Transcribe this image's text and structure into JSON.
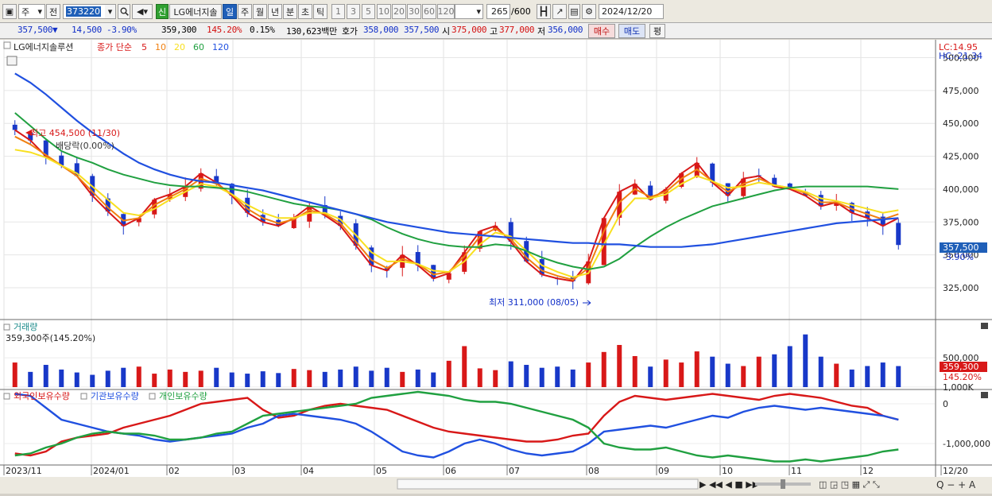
{
  "toolbar": {
    "period_label": "주",
    "prev_label": "전",
    "code": "373220",
    "company_label": "LG에너지솔",
    "badge_sin": "신",
    "periods": [
      "일",
      "주",
      "월",
      "년",
      "분",
      "초",
      "틱"
    ],
    "intervals": [
      "1",
      "3",
      "5",
      "10",
      "20",
      "30",
      "60",
      "120"
    ],
    "range_value": "265",
    "range_total": "/600",
    "date": "2024/12/20"
  },
  "quote": {
    "price": "357,500",
    "change_arrow": "▼",
    "change": "14,500",
    "change_pct": "-3.90%",
    "volume": "359,300",
    "volume_pct": "145.20%",
    "turnover_pct": "0.15%",
    "amount": "130,623백만",
    "hoga_label": "호가",
    "hoga_ask": "358,000",
    "hoga_bid": "357,500",
    "open_label": "시",
    "open": "375,000",
    "high_label": "고",
    "high": "377,000",
    "low_label": "저",
    "low": "356,000",
    "buy_label": "매수",
    "sell_label": "매도",
    "flat_label": "평"
  },
  "price_panel": {
    "stock_name": "LG에너지솔루션",
    "ma_prefix": "종가 단순",
    "ma_periods": [
      "5",
      "10",
      "20",
      "60",
      "120"
    ],
    "ma_colors": [
      "#d81818",
      "#f08010",
      "#f8e020",
      "#20a040",
      "#2050e0"
    ],
    "lc": "LC:14.95",
    "hc": "HC:-21.34",
    "y_ticks": [
      "500,000",
      "475,000",
      "450,000",
      "425,000",
      "400,000",
      "375,000",
      "350,000",
      "325,000"
    ],
    "current_tag": "357,500",
    "current_pct": "-3.90%",
    "high_note": "최고 454,500 (11/30)",
    "dividend_note": "배당락(0.00%)",
    "low_note": "최저 311,000 (08/05)"
  },
  "volume_panel": {
    "title": "거래량",
    "info": "359,300주(145.20%)",
    "y_ticks": [
      "1,000K",
      "500,000"
    ],
    "tag": "359,300",
    "tag_pct": "145.20%"
  },
  "holdings_panel": {
    "labels": [
      "외국인보유수량",
      "기관보유수량",
      "개인보유수량"
    ],
    "colors": [
      "#d81818",
      "#2050e0",
      "#20a040"
    ],
    "y_ticks": [
      "0",
      "-1,000,000"
    ]
  },
  "x_axis": [
    "2023/11",
    "2024/01",
    "02",
    "03",
    "04",
    "05",
    "06",
    "07",
    "08",
    "09",
    "10",
    "11",
    "12",
    "12/20"
  ],
  "chart_data": [
    {
      "type": "candlestick",
      "title": "LG에너지솔루션",
      "x": [
        "2023/11",
        "2024/01",
        "02",
        "03",
        "04",
        "05",
        "06",
        "07",
        "08",
        "09",
        "10",
        "11",
        "12",
        "12/20"
      ],
      "ylim": [
        302000,
        510000
      ],
      "close_series": [
        445000,
        437000,
        425000,
        418000,
        410000,
        395000,
        383000,
        372000,
        378000,
        392000,
        396000,
        402000,
        412000,
        405000,
        395000,
        382000,
        375000,
        372000,
        378000,
        387000,
        380000,
        372000,
        357000,
        342000,
        338000,
        350000,
        342000,
        332000,
        336000,
        352000,
        368000,
        372000,
        360000,
        345000,
        335000,
        332000,
        330000,
        345000,
        378000,
        398000,
        404000,
        392000,
        400000,
        412000,
        420000,
        405000,
        395000,
        408000,
        410000,
        402000,
        400000,
        395000,
        387000,
        390000,
        382000,
        378000,
        372000,
        357500
      ],
      "ma_series": [
        {
          "name": "5",
          "values": [
            445000,
            437000,
            425000,
            418000,
            410000,
            395000,
            383000,
            372000,
            378000,
            392000,
            396000,
            402000,
            412000,
            405000,
            395000,
            382000,
            375000,
            372000,
            378000,
            387000,
            380000,
            372000,
            357000,
            342000,
            338000,
            350000,
            342000,
            332000,
            336000,
            352000,
            368000,
            372000,
            360000,
            345000,
            335000,
            332000,
            330000,
            345000,
            378000,
            398000,
            404000,
            392000,
            400000,
            412000,
            420000,
            405000,
            395000,
            408000,
            410000,
            402000,
            400000,
            395000,
            387000,
            390000,
            382000,
            378000,
            372000,
            378000
          ]
        },
        {
          "name": "10",
          "values": [
            440000,
            434000,
            426000,
            418000,
            410000,
            398000,
            386000,
            376000,
            378000,
            388000,
            394000,
            400000,
            408000,
            404000,
            396000,
            385000,
            378000,
            374000,
            377000,
            384000,
            381000,
            374000,
            360000,
            346000,
            340000,
            347000,
            343000,
            335000,
            337000,
            349000,
            364000,
            370000,
            362000,
            348000,
            338000,
            334000,
            331000,
            340000,
            368000,
            390000,
            400000,
            394000,
            398000,
            408000,
            415000,
            406000,
            398000,
            404000,
            408000,
            403000,
            401000,
            397000,
            390000,
            390000,
            385000,
            381000,
            377000,
            381000
          ]
        },
        {
          "name": "20",
          "values": [
            430000,
            428000,
            424000,
            418000,
            412000,
            402000,
            392000,
            382000,
            380000,
            385000,
            392000,
            398000,
            404000,
            402000,
            396000,
            388000,
            382000,
            378000,
            378000,
            382000,
            382000,
            377000,
            365000,
            352000,
            345000,
            345000,
            343000,
            338000,
            337000,
            345000,
            358000,
            367000,
            364000,
            353000,
            342000,
            337000,
            333000,
            336000,
            358000,
            380000,
            393000,
            393000,
            396000,
            404000,
            410000,
            406000,
            401000,
            402000,
            405000,
            403000,
            401000,
            398000,
            393000,
            391000,
            388000,
            385000,
            382000,
            384000
          ]
        },
        {
          "name": "60",
          "values": [
            458000,
            448000,
            438000,
            429000,
            424000,
            420000,
            415000,
            411000,
            408000,
            405000,
            403000,
            402000,
            402000,
            401000,
            400000,
            398000,
            395000,
            392000,
            389000,
            387000,
            386000,
            384000,
            381000,
            377000,
            371000,
            366000,
            362000,
            359000,
            357000,
            356000,
            356000,
            358000,
            357000,
            353000,
            348000,
            344000,
            341000,
            339000,
            341000,
            347000,
            356000,
            364000,
            371000,
            377000,
            382000,
            387000,
            390000,
            393000,
            396000,
            399000,
            401000,
            402000,
            402000,
            402000,
            402000,
            402000,
            401000,
            400000
          ]
        },
        {
          "name": "120",
          "values": [
            488000,
            481000,
            472000,
            462000,
            452000,
            443000,
            435000,
            427000,
            420000,
            415000,
            411000,
            408000,
            406000,
            405000,
            403000,
            401000,
            399000,
            396000,
            393000,
            390000,
            387000,
            384000,
            381000,
            378000,
            375000,
            373000,
            371000,
            369000,
            367000,
            366000,
            365000,
            364000,
            363000,
            362000,
            361000,
            360000,
            359000,
            359000,
            358000,
            358000,
            357000,
            356000,
            356000,
            356000,
            357000,
            358000,
            360000,
            362000,
            364000,
            366000,
            368000,
            370000,
            372000,
            374000,
            375000,
            376000,
            377000,
            378000
          ]
        }
      ]
    },
    {
      "type": "bar",
      "title": "거래량",
      "ylim": [
        0,
        1100000
      ],
      "values": [
        420000,
        260000,
        380000,
        300000,
        250000,
        210000,
        280000,
        330000,
        350000,
        230000,
        300000,
        260000,
        280000,
        330000,
        250000,
        230000,
        270000,
        240000,
        310000,
        290000,
        260000,
        300000,
        350000,
        280000,
        330000,
        260000,
        300000,
        250000,
        450000,
        700000,
        320000,
        290000,
        440000,
        380000,
        330000,
        350000,
        300000,
        420000,
        600000,
        720000,
        530000,
        350000,
        470000,
        420000,
        610000,
        520000,
        400000,
        360000,
        520000,
        560000,
        700000,
        900000,
        520000,
        400000,
        300000,
        360000,
        420000,
        359300
      ]
    },
    {
      "type": "line",
      "title": "외국인/기관/개인 보유수량",
      "ylim": [
        -1500000,
        300000
      ],
      "series": [
        {
          "name": "외국인보유수량",
          "values": [
            -1250000,
            -1300000,
            -1200000,
            -950000,
            -850000,
            -800000,
            -750000,
            -600000,
            -500000,
            -400000,
            -300000,
            -150000,
            0,
            50000,
            100000,
            150000,
            -150000,
            -350000,
            -300000,
            -150000,
            -50000,
            0,
            -50000,
            -100000,
            -150000,
            -300000,
            -450000,
            -600000,
            -700000,
            -750000,
            -800000,
            -850000,
            -900000,
            -950000,
            -950000,
            -900000,
            -800000,
            -750000,
            -300000,
            50000,
            200000,
            150000,
            100000,
            150000,
            200000,
            250000,
            200000,
            150000,
            100000,
            200000,
            250000,
            200000,
            150000,
            50000,
            -50000,
            -100000,
            -300000,
            -400000
          ]
        },
        {
          "name": "기관보유수량",
          "values": [
            250000,
            200000,
            -100000,
            -400000,
            -500000,
            -600000,
            -700000,
            -750000,
            -800000,
            -900000,
            -950000,
            -900000,
            -850000,
            -800000,
            -750000,
            -600000,
            -500000,
            -300000,
            -250000,
            -300000,
            -350000,
            -400000,
            -500000,
            -700000,
            -950000,
            -1200000,
            -1300000,
            -1350000,
            -1200000,
            -1000000,
            -900000,
            -1000000,
            -1150000,
            -1250000,
            -1300000,
            -1250000,
            -1200000,
            -1000000,
            -700000,
            -650000,
            -600000,
            -550000,
            -600000,
            -500000,
            -400000,
            -300000,
            -350000,
            -200000,
            -100000,
            -50000,
            -100000,
            -150000,
            -100000,
            -150000,
            -200000,
            -250000,
            -300000,
            -400000
          ]
        },
        {
          "name": "개인보유수량",
          "values": [
            -1300000,
            -1250000,
            -1100000,
            -1000000,
            -850000,
            -750000,
            -700000,
            -750000,
            -750000,
            -800000,
            -900000,
            -900000,
            -850000,
            -750000,
            -700000,
            -500000,
            -300000,
            -250000,
            -200000,
            -150000,
            -100000,
            -50000,
            0,
            150000,
            200000,
            250000,
            300000,
            250000,
            200000,
            100000,
            50000,
            50000,
            0,
            -100000,
            -200000,
            -300000,
            -400000,
            -600000,
            -1000000,
            -1100000,
            -1150000,
            -1150000,
            -1100000,
            -1200000,
            -1300000,
            -1350000,
            -1300000,
            -1350000,
            -1400000,
            -1450000,
            -1450000,
            -1400000,
            -1450000,
            -1400000,
            -1350000,
            -1300000,
            -1200000,
            -1150000
          ]
        }
      ]
    }
  ]
}
